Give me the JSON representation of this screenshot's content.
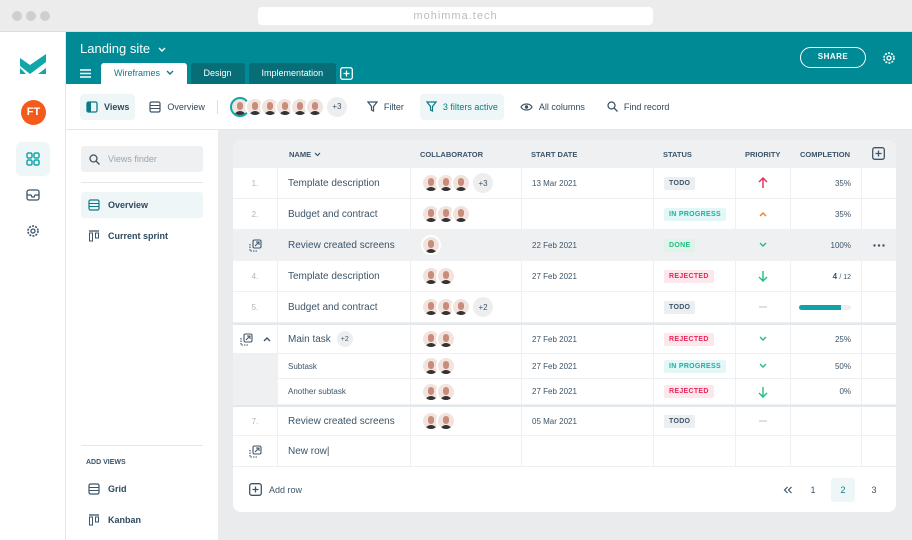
{
  "browser": {
    "url": "mohimma.tech"
  },
  "user": {
    "initials": "FT"
  },
  "project": {
    "title": "Landing site",
    "tabs": [
      "Wireframes",
      "Design",
      "Implementation"
    ],
    "share": "SHARE"
  },
  "toolbar": {
    "views": "Views",
    "overview": "Overview",
    "collab_more": "+3",
    "filter": "Filter",
    "filters_active": "3 filters active",
    "all_columns": "All columns",
    "find_record": "Find record"
  },
  "sidebar": {
    "finder_placeholder": "Views finder",
    "items": [
      "Overview",
      "Current sprint"
    ],
    "add_views_title": "ADD VIEWS",
    "add_views": [
      "Grid",
      "Kanban"
    ]
  },
  "colors": {
    "teal": "#008a95",
    "accent": "#0fa3a5"
  },
  "table": {
    "columns": [
      "NAME",
      "COLLABORATOR",
      "START DATE",
      "STATUS",
      "PRIORITY",
      "COMPLETION"
    ],
    "rows": [
      {
        "idx": "1.",
        "name": "Template description",
        "faces": 3,
        "more": "+3",
        "date": "13 Mar 2021",
        "status": "TODO",
        "priority": "high",
        "completion": "35%"
      },
      {
        "idx": "2.",
        "name": "Budget and contract",
        "faces": 3,
        "more": "",
        "date": "",
        "status": "IN PROGRESS",
        "priority": "medium",
        "completion": "35%"
      },
      {
        "idx": "",
        "name": "Review created screens",
        "faces": 1,
        "more": "",
        "date": "22 Feb 2021",
        "status": "DONE",
        "priority": "low",
        "completion": "100%",
        "hover": true
      },
      {
        "idx": "4.",
        "name": "Template description",
        "faces": 2,
        "more": "",
        "date": "27 Feb 2021",
        "status": "REJECTED",
        "priority": "lowest",
        "completion_done": "4",
        "completion_total": "/ 12"
      },
      {
        "idx": "5.",
        "name": "Budget and contract",
        "faces": 3,
        "more": "+2",
        "date": "",
        "status": "TODO",
        "priority": "none",
        "progress": 0.8
      },
      {
        "idx": "",
        "name": "Main task",
        "count": "+2",
        "faces": 2,
        "more": "",
        "date": "27 Feb 2021",
        "status": "REJECTED",
        "priority": "low",
        "completion": "25%",
        "parent": true
      },
      {
        "idx": "",
        "name": "Subtask",
        "faces": 2,
        "more": "",
        "date": "27 Feb 2021",
        "status": "IN PROGRESS",
        "priority": "low",
        "completion": "50%",
        "sub": true
      },
      {
        "idx": "",
        "name": "Another subtask",
        "faces": 2,
        "more": "",
        "date": "27 Feb 2021",
        "status": "REJECTED",
        "priority": "lowest",
        "completion": "0%",
        "sub": true
      },
      {
        "idx": "7.",
        "name": "Review created screens",
        "faces": 2,
        "more": "",
        "date": "05 Mar 2021",
        "status": "TODO",
        "priority": "none",
        "completion": ""
      },
      {
        "idx": "",
        "name": "New row|",
        "faces": 0,
        "more": "",
        "date": "",
        "status": "",
        "priority": "",
        "completion": "",
        "newrow": true
      }
    ],
    "add_row": "Add row",
    "pages": [
      "1",
      "2",
      "3"
    ],
    "current_page": "2"
  }
}
